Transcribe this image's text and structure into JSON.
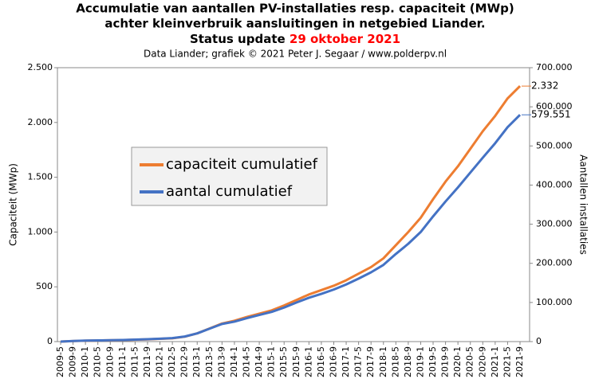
{
  "chart_data": {
    "type": "line",
    "title": [
      "Accumulatie van aantallen PV-installaties resp. capaciteit (MWp)",
      "achter kleinverbruik aansluitingen in netgebied Liander."
    ],
    "status": {
      "text": "Status update ",
      "date": "29 oktober 2021",
      "date_color": "#ff0000"
    },
    "subtitle": "Data Liander; grafiek © 2021 Peter J. Segaar / www.polderpv.nl",
    "y_label": "Capaciteit (MWp)",
    "y2_label": "Aantallen installaties",
    "categories": [
      "2009-5",
      "2009-9",
      "2010-1",
      "2010-5",
      "2010-9",
      "2011-1",
      "2011-5",
      "2011-9",
      "2012-1",
      "2012-5",
      "2012-9",
      "2013-1",
      "2013-5",
      "2013-9",
      "2014-1",
      "2014-5",
      "2014-9",
      "2015-1",
      "2015-5",
      "2015-9",
      "2016-1",
      "2016-5",
      "2016-9",
      "2017-1",
      "2017-5",
      "2017-9",
      "2018-1",
      "2018-5",
      "2018-9",
      "2019-1",
      "2019-5",
      "2019-9",
      "2020-1",
      "2020-5",
      "2020-9",
      "2021-1",
      "2021-5",
      "2021-9"
    ],
    "series": [
      {
        "name": "capaciteit cumulatief",
        "color": "#ed7d31",
        "values": [
          0,
          5,
          8,
          10,
          12,
          14,
          17,
          20,
          25,
          30,
          45,
          75,
          120,
          165,
          190,
          225,
          255,
          285,
          330,
          380,
          430,
          470,
          510,
          560,
          620,
          680,
          760,
          880,
          1000,
          1130,
          1300,
          1460,
          1600,
          1760,
          1920,
          2060,
          2220,
          2332
        ]
      },
      {
        "name": "aantal cumulatief",
        "color": "#4472c4",
        "axis": "y2",
        "values": [
          0,
          1500,
          2500,
          3000,
          3500,
          4000,
          5000,
          6000,
          7500,
          9000,
          13000,
          21000,
          33000,
          45000,
          51000,
          60000,
          68000,
          76000,
          87000,
          100000,
          112000,
          122000,
          133000,
          146000,
          161000,
          177000,
          196000,
          224000,
          250000,
          280000,
          320000,
          358000,
          394000,
          432000,
          470000,
          507000,
          548000,
          579551
        ]
      }
    ],
    "annotations": [
      {
        "label": "2.332",
        "value": 2332,
        "color": "#ed7d31"
      },
      {
        "label": "579.551",
        "value": 579551,
        "axis": "y2",
        "color": "#4472c4"
      }
    ],
    "ylim": [
      0,
      2500
    ],
    "yticks": [
      0,
      500,
      {
        "value": 1000,
        "label": "1.000"
      },
      {
        "value": 1500,
        "label": "1.500"
      },
      {
        "value": 2000,
        "label": "2.000"
      },
      {
        "value": 2500,
        "label": "2.500"
      }
    ],
    "y2lim": [
      0,
      700000
    ],
    "y2ticks": [
      0,
      {
        "value": 100000,
        "label": "100.000"
      },
      {
        "value": 200000,
        "label": "200.000"
      },
      {
        "value": 300000,
        "label": "300.000"
      },
      {
        "value": 400000,
        "label": "400.000"
      },
      {
        "value": 500000,
        "label": "500.000"
      },
      {
        "value": 600000,
        "label": "600.000"
      },
      {
        "value": 700000,
        "label": "700.000"
      }
    ]
  }
}
